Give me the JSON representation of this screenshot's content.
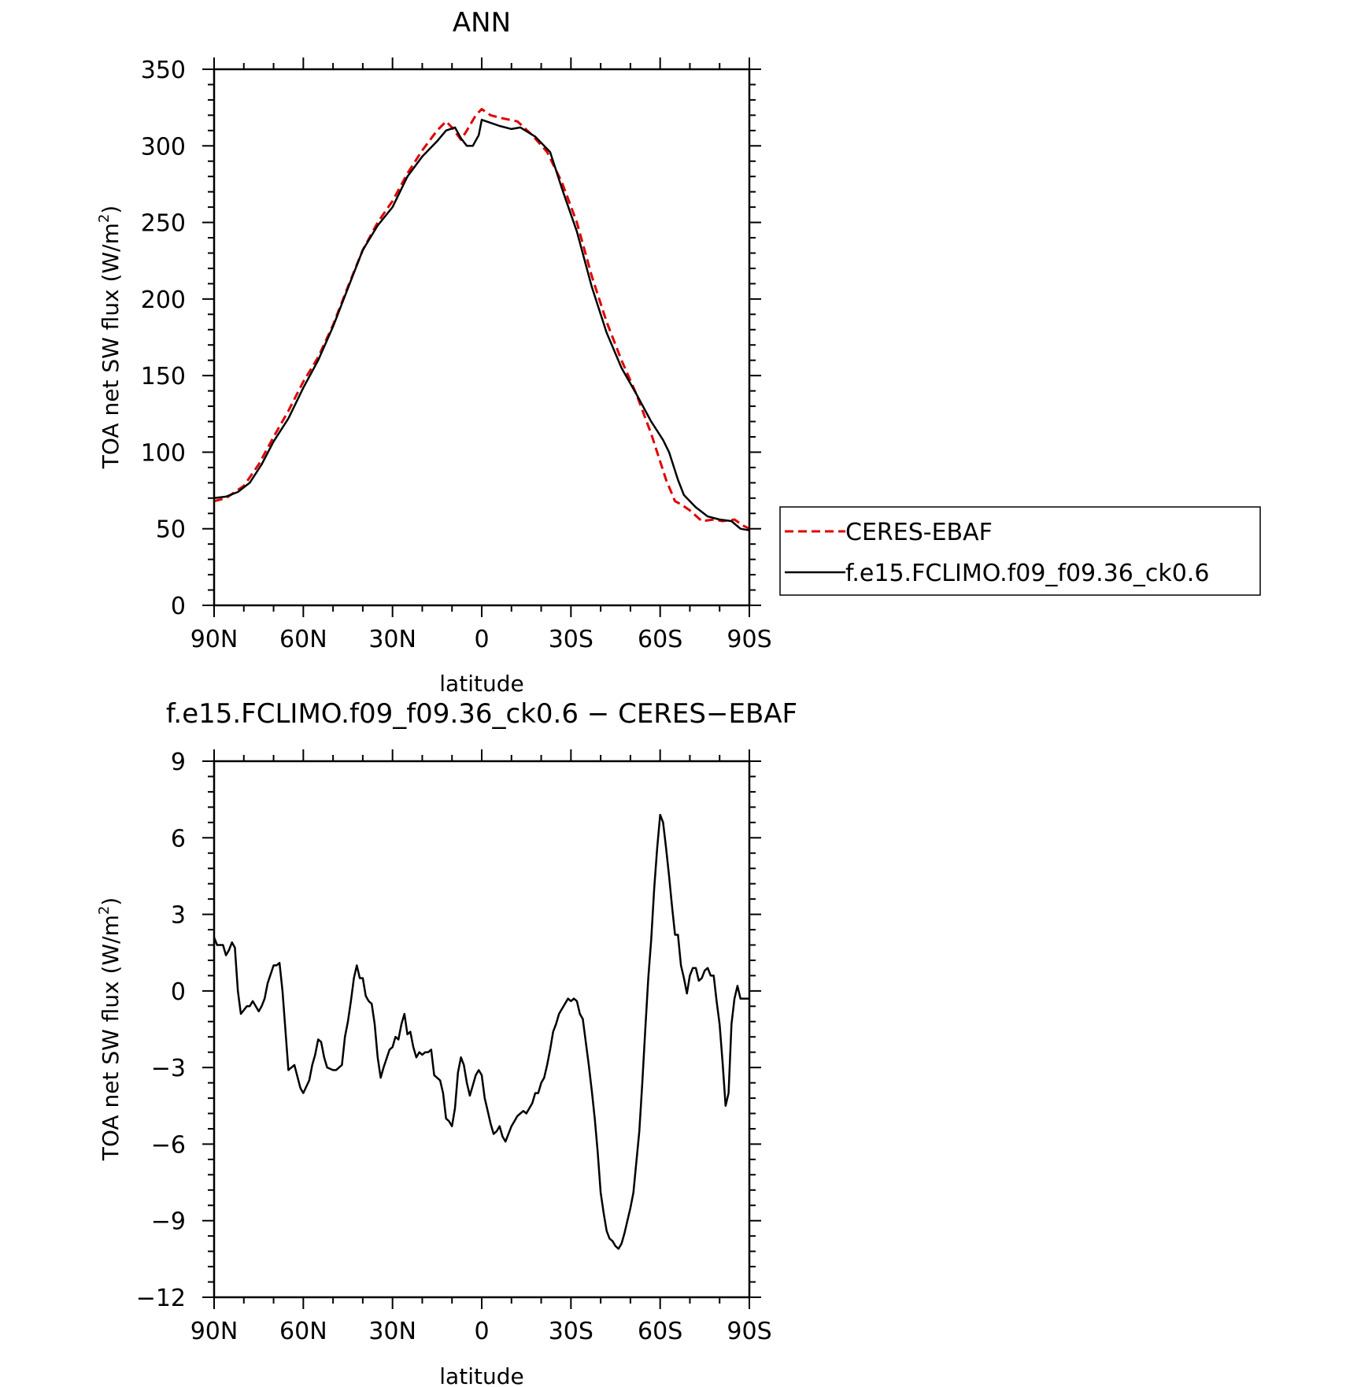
{
  "chart_data": [
    {
      "type": "line",
      "title": "ANN",
      "xlabel": "latitude",
      "ylabel": "TOA net SW flux (W/m",
      "ylabel_sup": "2",
      "ylabel_close": ")",
      "xlim": [
        90,
        -90
      ],
      "ylim": [
        0,
        350
      ],
      "x_ticks": [
        90,
        60,
        30,
        0,
        -30,
        -60,
        -90
      ],
      "x_tick_labels": [
        "90N",
        "60N",
        "30N",
        "0",
        "30S",
        "60S",
        "90S"
      ],
      "y_ticks": [
        0,
        50,
        100,
        150,
        200,
        250,
        300,
        350
      ],
      "y_tick_labels": [
        "0",
        "50",
        "100",
        "150",
        "200",
        "250",
        "300",
        "350"
      ],
      "legend_position": "right",
      "series": [
        {
          "name": "CERES-EBAF",
          "color": "#e00000",
          "dash": "dashed",
          "x": [
            90,
            86,
            80,
            75,
            70,
            65,
            60,
            55,
            50,
            45,
            40,
            35,
            30,
            25,
            20,
            15,
            12,
            10,
            7,
            5,
            2,
            0,
            -3,
            -7,
            -12,
            -17,
            -22,
            -27,
            -32,
            -37,
            -42,
            -47,
            -52,
            -57,
            -62,
            -65,
            -67,
            -70,
            -74,
            -78,
            -81,
            -85,
            -88,
            -90
          ],
          "y": [
            68,
            70,
            78,
            92,
            110,
            127,
            146,
            162,
            183,
            208,
            232,
            250,
            264,
            282,
            297,
            310,
            316,
            312,
            304,
            310,
            320,
            324,
            320,
            318,
            316,
            307,
            296,
            276,
            250,
            215,
            185,
            160,
            138,
            112,
            82,
            68,
            66,
            62,
            55,
            56,
            55,
            56,
            52,
            50
          ]
        },
        {
          "name": "f.e15.FCLIMO.f09_f09.36_ck0.6",
          "color": "#000000",
          "dash": "solid",
          "x": [
            90,
            86,
            82,
            78,
            74,
            70,
            65,
            60,
            55,
            50,
            45,
            40,
            35,
            30,
            25,
            20,
            15,
            12,
            9,
            7,
            5,
            3,
            1,
            0,
            -3,
            -6,
            -10,
            -13,
            -18,
            -23,
            -27,
            -32,
            -37,
            -42,
            -47,
            -52,
            -57,
            -61,
            -63,
            -66,
            -68,
            -72,
            -76,
            -80,
            -84,
            -87,
            -90
          ],
          "y": [
            70,
            71,
            74,
            80,
            92,
            107,
            122,
            142,
            160,
            182,
            207,
            232,
            248,
            260,
            280,
            293,
            303,
            310,
            312,
            305,
            300,
            300,
            307,
            317,
            315,
            313,
            311,
            312,
            306,
            296,
            272,
            244,
            208,
            178,
            155,
            138,
            120,
            108,
            100,
            82,
            72,
            64,
            58,
            56,
            55,
            50,
            49
          ]
        }
      ]
    },
    {
      "type": "line",
      "title": "f.e15.FCLIMO.f09_f09.36_ck0.6 − CERES−EBAF",
      "xlabel": "latitude",
      "ylabel": "TOA net SW flux (W/m",
      "ylabel_sup": "2",
      "ylabel_close": ")",
      "xlim": [
        90,
        -90
      ],
      "ylim": [
        -12,
        9
      ],
      "x_ticks": [
        90,
        60,
        30,
        0,
        -30,
        -60,
        -90
      ],
      "x_tick_labels": [
        "90N",
        "60N",
        "30N",
        "0",
        "30S",
        "60S",
        "90S"
      ],
      "y_ticks": [
        -12,
        -9,
        -6,
        -3,
        0,
        3,
        6,
        9
      ],
      "y_tick_labels": [
        "−12",
        "−9",
        "−6",
        "−3",
        "0",
        "3",
        "6",
        "9"
      ],
      "series": [
        {
          "name": "",
          "color": "#000000",
          "dash": "solid",
          "x": [
            90,
            89,
            87,
            86,
            85,
            84,
            83,
            82,
            81,
            79,
            78,
            77,
            75,
            74,
            73,
            72,
            70,
            69,
            68,
            67,
            65,
            63,
            61,
            60,
            58,
            57,
            56,
            55,
            54,
            53,
            52,
            50,
            49,
            47,
            46,
            45,
            44,
            43,
            42,
            41,
            40,
            39,
            38,
            37,
            36,
            35,
            34,
            33,
            31,
            30,
            29,
            28,
            27,
            26,
            25,
            24,
            23,
            22,
            21,
            20,
            19,
            18,
            17,
            16,
            14,
            13,
            12,
            11,
            10,
            9,
            8,
            7,
            6,
            5,
            4,
            3,
            2,
            1,
            0,
            -1,
            -2,
            -3,
            -4,
            -5,
            -6,
            -7,
            -8,
            -10,
            -11,
            -12,
            -13,
            -14,
            -15,
            -16,
            -17,
            -18,
            -19,
            -20,
            -21,
            -22,
            -23,
            -24,
            -25,
            -26,
            -28,
            -29,
            -30,
            -31,
            -32,
            -33,
            -34,
            -35,
            -36,
            -37,
            -38,
            -39,
            -40,
            -41,
            -42,
            -43,
            -44,
            -45,
            -46,
            -47,
            -48,
            -49,
            -50,
            -51,
            -53,
            -54,
            -55,
            -56,
            -57,
            -58,
            -59,
            -60,
            -61,
            -62,
            -63,
            -64,
            -65,
            -66,
            -67,
            -68,
            -69,
            -70,
            -71,
            -72,
            -73,
            -74,
            -75,
            -76,
            -77,
            -78,
            -79,
            -80,
            -81,
            -82,
            -83,
            -84,
            -85,
            -86,
            -87,
            -88,
            -89,
            -90
          ],
          "y": [
            2.1,
            1.8,
            1.8,
            1.4,
            1.6,
            1.9,
            1.7,
            0.0,
            -0.9,
            -0.6,
            -0.6,
            -0.4,
            -0.8,
            -0.6,
            -0.3,
            0.3,
            1.0,
            1.0,
            1.1,
            0.0,
            -3.1,
            -2.9,
            -3.8,
            -4.0,
            -3.5,
            -2.9,
            -2.5,
            -1.9,
            -2.0,
            -2.6,
            -3.0,
            -3.1,
            -3.1,
            -2.9,
            -1.8,
            -1.2,
            -0.4,
            0.5,
            1.0,
            0.5,
            0.5,
            -0.2,
            -0.4,
            -0.5,
            -1.3,
            -2.6,
            -3.4,
            -3.0,
            -2.3,
            -2.2,
            -1.8,
            -1.9,
            -1.3,
            -0.9,
            -1.7,
            -1.6,
            -2.2,
            -2.6,
            -2.4,
            -2.5,
            -2.4,
            -2.4,
            -2.3,
            -3.3,
            -3.5,
            -4.0,
            -5.0,
            -5.1,
            -5.3,
            -4.6,
            -3.2,
            -2.6,
            -2.9,
            -3.6,
            -4.1,
            -3.7,
            -3.3,
            -3.1,
            -3.3,
            -4.2,
            -4.7,
            -5.2,
            -5.6,
            -5.5,
            -5.3,
            -5.7,
            -5.9,
            -5.3,
            -5.1,
            -4.9,
            -4.8,
            -4.7,
            -4.8,
            -4.6,
            -4.4,
            -4.0,
            -4.0,
            -3.6,
            -3.4,
            -2.9,
            -2.3,
            -1.6,
            -1.3,
            -0.9,
            -0.5,
            -0.3,
            -0.4,
            -0.3,
            -0.4,
            -0.9,
            -1.1,
            -2.0,
            -2.9,
            -3.9,
            -5.0,
            -6.3,
            -7.9,
            -8.7,
            -9.4,
            -9.7,
            -9.8,
            -10.0,
            -10.1,
            -9.9,
            -9.5,
            -9.0,
            -8.5,
            -7.9,
            -5.5,
            -3.6,
            -1.5,
            0.5,
            2.0,
            4.0,
            5.6,
            6.9,
            6.6,
            5.6,
            4.5,
            3.3,
            2.2,
            2.2,
            1.0,
            0.5,
            -0.1,
            0.6,
            0.9,
            0.9,
            0.4,
            0.5,
            0.8,
            0.9,
            0.6,
            0.6,
            -0.4,
            -1.3,
            -2.8,
            -4.5,
            -4.0,
            -1.3,
            -0.3,
            0.2,
            -0.3,
            -0.3,
            -0.3,
            -0.3
          ]
        }
      ]
    }
  ]
}
